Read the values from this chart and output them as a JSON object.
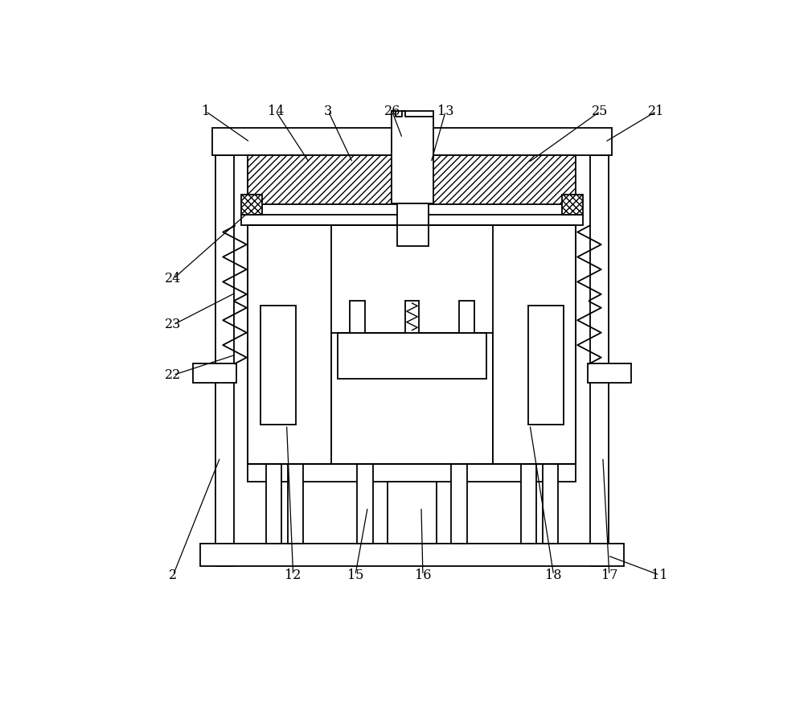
{
  "bg_color": "#ffffff",
  "lw": 1.3,
  "fig_width": 10.0,
  "fig_height": 8.73,
  "leaders": {
    "1": {
      "lxy": [
        0.118,
        0.95
      ],
      "txy": [
        0.2,
        0.893
      ]
    },
    "14": {
      "lxy": [
        0.248,
        0.95
      ],
      "txy": [
        0.31,
        0.855
      ]
    },
    "3": {
      "lxy": [
        0.345,
        0.95
      ],
      "txy": [
        0.39,
        0.855
      ]
    },
    "26": {
      "lxy": [
        0.463,
        0.95
      ],
      "txy": [
        0.482,
        0.9
      ]
    },
    "13": {
      "lxy": [
        0.562,
        0.95
      ],
      "txy": [
        0.535,
        0.855
      ]
    },
    "25": {
      "lxy": [
        0.848,
        0.95
      ],
      "txy": [
        0.715,
        0.855
      ]
    },
    "21": {
      "lxy": [
        0.952,
        0.95
      ],
      "txy": [
        0.857,
        0.893
      ]
    },
    "24": {
      "lxy": [
        0.058,
        0.64
      ],
      "txy": [
        0.196,
        0.762
      ]
    },
    "23": {
      "lxy": [
        0.058,
        0.555
      ],
      "txy": [
        0.175,
        0.615
      ]
    },
    "22": {
      "lxy": [
        0.058,
        0.462
      ],
      "txy": [
        0.175,
        0.5
      ]
    },
    "2": {
      "lxy": [
        0.058,
        0.092
      ],
      "txy": [
        0.145,
        0.31
      ]
    },
    "12": {
      "lxy": [
        0.28,
        0.092
      ],
      "txy": [
        0.268,
        0.37
      ]
    },
    "15": {
      "lxy": [
        0.395,
        0.092
      ],
      "txy": [
        0.418,
        0.218
      ]
    },
    "16": {
      "lxy": [
        0.52,
        0.092
      ],
      "txy": [
        0.517,
        0.218
      ]
    },
    "18": {
      "lxy": [
        0.762,
        0.092
      ],
      "txy": [
        0.718,
        0.37
      ]
    },
    "17": {
      "lxy": [
        0.865,
        0.092
      ],
      "txy": [
        0.853,
        0.31
      ]
    },
    "11": {
      "lxy": [
        0.958,
        0.092
      ],
      "txy": [
        0.862,
        0.128
      ]
    }
  }
}
